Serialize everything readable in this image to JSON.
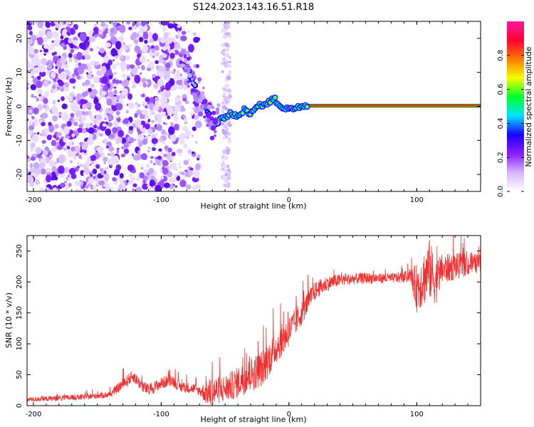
{
  "figure_title": "S124.2023.143.16.51.R18",
  "chart_data": [
    {
      "type": "heatmap",
      "xlabel": "Height of straight line (km)",
      "ylabel": "Frequency (Hz)",
      "xlim": [
        -205,
        150
      ],
      "ylim": [
        -25,
        25
      ],
      "x_ticks": [
        -200,
        -100,
        0,
        100
      ],
      "x_tick_labels": [
        "-200",
        "-100",
        "0",
        "100"
      ],
      "y_ticks": [
        -20,
        -10,
        0,
        10,
        20
      ],
      "y_tick_labels": [
        "-20",
        "-10",
        "0",
        "10",
        "20"
      ],
      "colorbar": {
        "label": "Normalized spectral amplitude",
        "range": [
          0,
          1
        ],
        "ticks": [
          0.0,
          0.2,
          0.4,
          0.6,
          0.8
        ],
        "tick_labels": [
          "0.0",
          "0.2",
          "0.4",
          "0.6",
          "0.8"
        ],
        "colors": [
          "#ffffff",
          "#d8b4ff",
          "#8a1cff",
          "#1a00ff",
          "#00e5ff",
          "#00ff2a",
          "#f4ff00",
          "#ff7a00",
          "#ff0033",
          "#ff1aa0"
        ]
      },
      "ridge": {
        "x": [
          -82,
          -78,
          -74,
          -70,
          -66,
          -62,
          -58,
          -54,
          -50,
          -45,
          -40,
          -35,
          -30,
          -25,
          -20,
          -15,
          -12,
          -8,
          -4,
          0,
          4,
          8,
          12,
          15,
          50,
          100,
          150
        ],
        "y": [
          12,
          10,
          6,
          3,
          1,
          -3,
          -6,
          -4,
          -3,
          -2,
          -3,
          -1,
          -2,
          0,
          0.5,
          1.5,
          2.5,
          0.5,
          -0.5,
          -1,
          -0.5,
          -0.3,
          0,
          0,
          0,
          0,
          0
        ]
      },
      "grid": false
    },
    {
      "type": "line",
      "xlabel": "Height of straight line (km)",
      "ylabel": "SNR (10 * v/v)",
      "xlim": [
        -205,
        150
      ],
      "ylim": [
        0,
        275
      ],
      "x_ticks": [
        -200,
        -100,
        0,
        100
      ],
      "x_tick_labels": [
        "-200",
        "-100",
        "0",
        "100"
      ],
      "y_ticks": [
        0,
        50,
        100,
        150,
        200,
        250
      ],
      "y_tick_labels": [
        "0",
        "50",
        "100",
        "150",
        "200",
        "250"
      ],
      "color": "#f03030",
      "envelope": {
        "x": [
          -205,
          -180,
          -160,
          -140,
          -130,
          -122,
          -115,
          -110,
          -100,
          -92,
          -85,
          -75,
          -65,
          -60,
          -55,
          -50,
          -45,
          -40,
          -30,
          -20,
          -10,
          0,
          10,
          20,
          30,
          40,
          50,
          60,
          70,
          80,
          90,
          95,
          100,
          105,
          110,
          115,
          120,
          130,
          140,
          150
        ],
        "y": [
          10,
          12,
          14,
          18,
          35,
          48,
          32,
          25,
          36,
          42,
          30,
          28,
          20,
          22,
          25,
          28,
          32,
          38,
          50,
          62,
          95,
          120,
          150,
          185,
          198,
          203,
          205,
          206,
          206,
          206,
          208,
          210,
          190,
          205,
          220,
          200,
          220,
          225,
          228,
          230
        ]
      },
      "noise_amplitude": {
        "x": [
          -205,
          -140,
          -130,
          -100,
          -70,
          -60,
          -55,
          -40,
          -20,
          0,
          20,
          40,
          80,
          95,
          100,
          110,
          120,
          150
        ],
        "y": [
          4,
          5,
          10,
          10,
          8,
          28,
          22,
          25,
          30,
          25,
          15,
          10,
          8,
          10,
          40,
          50,
          25,
          15
        ]
      },
      "grid": false
    }
  ]
}
